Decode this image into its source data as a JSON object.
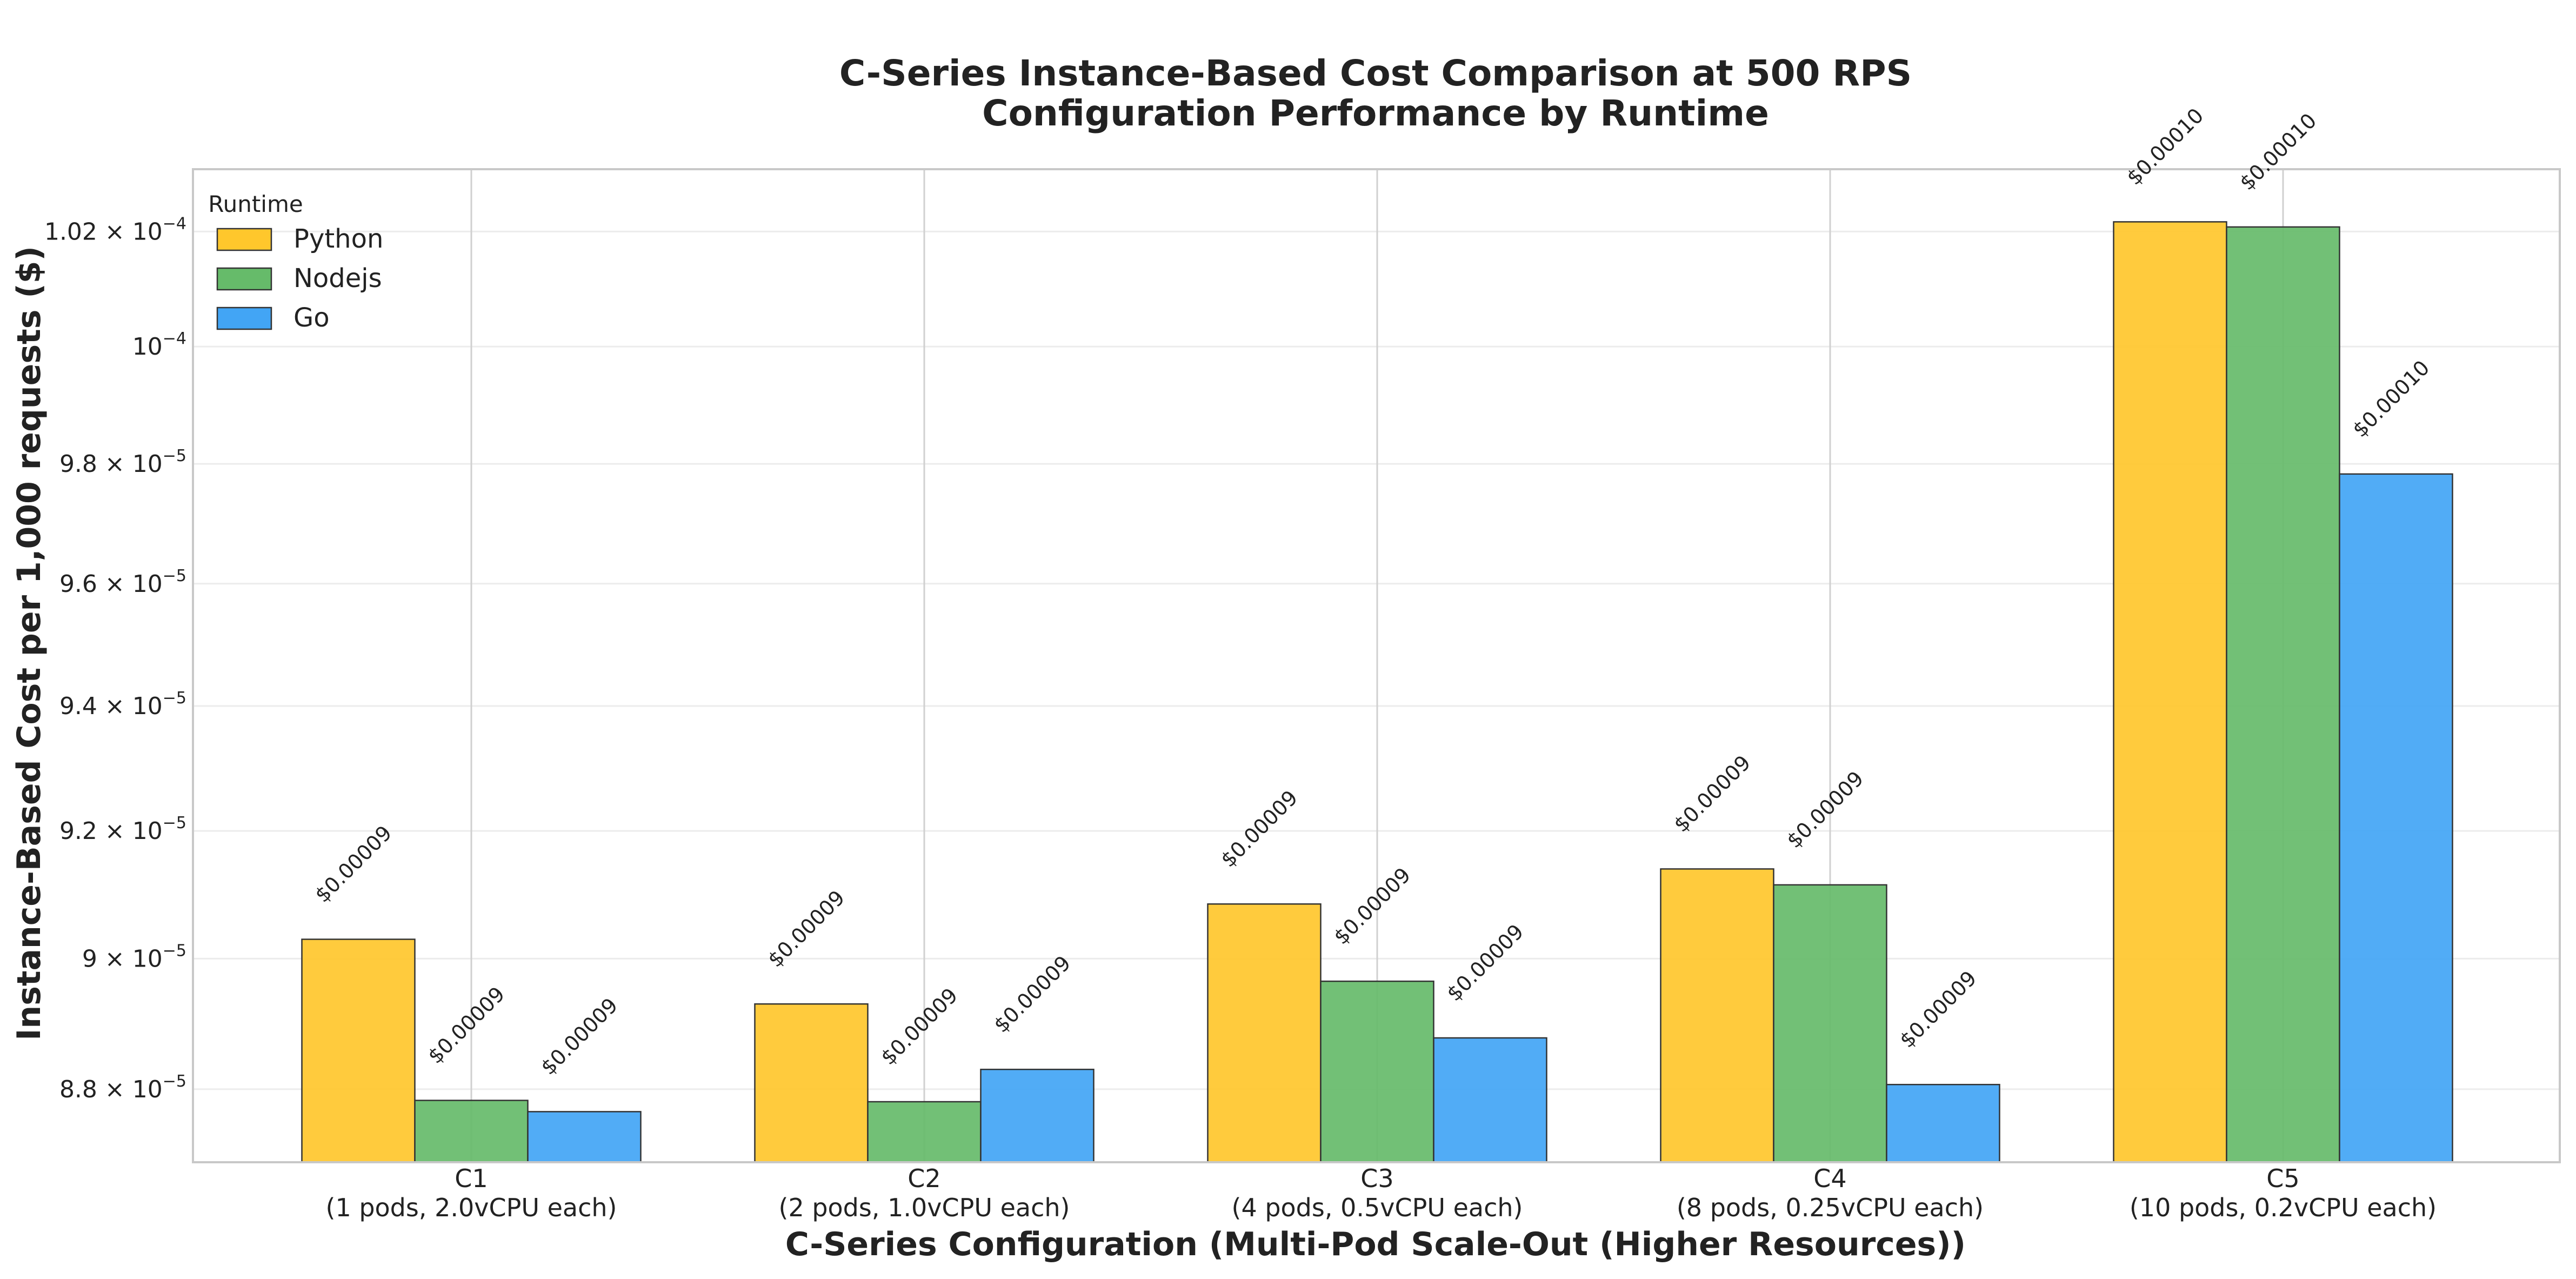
{
  "chart_data": {
    "type": "bar",
    "title": "C-Series Instance-Based Cost Comparison at 500 RPS",
    "subtitle": "Configuration Performance by Runtime",
    "xlabel": "C-Series Configuration (Multi-Pod Scale-Out (Higher Resources))",
    "ylabel": "Instance-Based Cost per 1,000 requests ($)",
    "y_scale": "log",
    "ylim": [
      8.69e-05,
      0.0001031
    ],
    "y_ticks": [
      {
        "value": 8.8e-05,
        "mantissa": "8.8",
        "exponent": "−5"
      },
      {
        "value": 9e-05,
        "mantissa": "9",
        "exponent": "−5"
      },
      {
        "value": 9.2e-05,
        "mantissa": "9.2",
        "exponent": "−5"
      },
      {
        "value": 9.4e-05,
        "mantissa": "9.4",
        "exponent": "−5"
      },
      {
        "value": 9.6e-05,
        "mantissa": "9.6",
        "exponent": "−5"
      },
      {
        "value": 9.8e-05,
        "mantissa": "9.8",
        "exponent": "−5"
      },
      {
        "value": 0.0001,
        "mantissa": "",
        "exponent": "−4"
      },
      {
        "value": 0.000102,
        "mantissa": "1.02",
        "exponent": "−4"
      }
    ],
    "grid": true,
    "legend_title": "Runtime",
    "legend_position": "top-left",
    "categories": [
      "C1",
      "C2",
      "C3",
      "C4",
      "C5"
    ],
    "category_details": [
      "(1 pods, 2.0vCPU each)",
      "(2 pods, 1.0vCPU each)",
      "(4 pods, 0.5vCPU each)",
      "(8 pods, 0.25vCPU each)",
      "(10 pods, 0.2vCPU each)"
    ],
    "series": [
      {
        "name": "Python",
        "color": "#FFC72C",
        "values": [
          9.03e-05,
          8.93e-05,
          9.085e-05,
          9.14e-05,
          0.00010217
        ],
        "labels": [
          "$0.00009",
          "$0.00009",
          "$0.00009",
          "$0.00009",
          "$0.00010"
        ]
      },
      {
        "name": "Nodejs",
        "color": "#66BB6A",
        "values": [
          8.783e-05,
          8.781e-05,
          8.965e-05,
          9.115e-05,
          0.00010208
        ],
        "labels": [
          "$0.00009",
          "$0.00009",
          "$0.00009",
          "$0.00009",
          "$0.00010"
        ]
      },
      {
        "name": "Go",
        "color": "#42A5F5",
        "values": [
          8.766e-05,
          8.83e-05,
          8.878e-05,
          8.807e-05,
          9.783e-05
        ],
        "labels": [
          "$0.00009",
          "$0.00009",
          "$0.00009",
          "$0.00009",
          "$0.00010"
        ]
      }
    ]
  }
}
